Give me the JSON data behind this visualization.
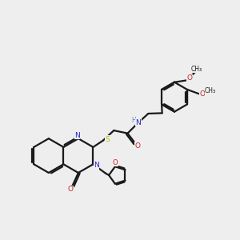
{
  "bg_color": "#eeeeee",
  "bond_color": "#1a1a1a",
  "N_color": "#2222cc",
  "O_color": "#cc2222",
  "S_color": "#bbbb00",
  "H_color": "#5588aa",
  "lw": 1.6,
  "figsize": [
    3.0,
    3.0
  ],
  "dpi": 100,
  "xlim": [
    0,
    10
  ],
  "ylim": [
    0,
    10
  ]
}
